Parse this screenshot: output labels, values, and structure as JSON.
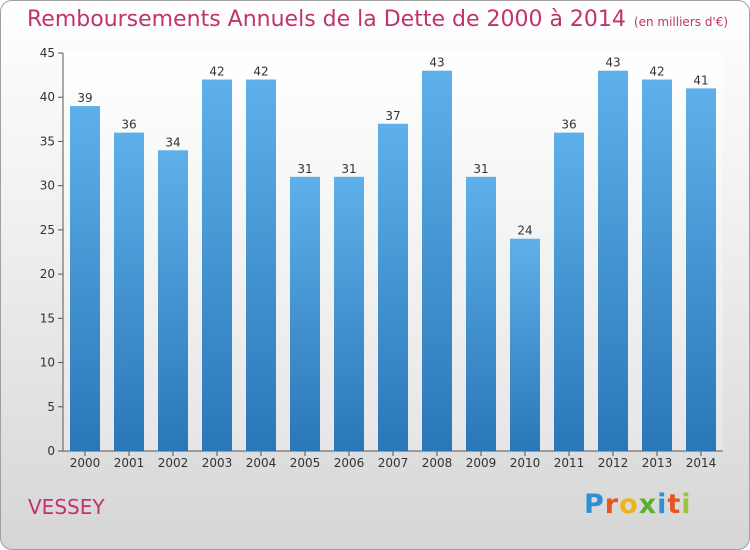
{
  "title": "Remboursements Annuels de la Dette de 2000 à 2014",
  "subtitle": "(en milliers d'€)",
  "commune": "VESSEY",
  "brand": {
    "letters": [
      "P",
      "r",
      "o",
      "x",
      "i",
      "t",
      "i"
    ],
    "colors": [
      "#2e8fd6",
      "#e8541f",
      "#f2b21a",
      "#5bb033",
      "#2e8fd6",
      "#e8541f",
      "#9bc43a"
    ]
  },
  "colors": {
    "accent": "#c0336e",
    "bar_top": "#5eb0ea",
    "bar_bottom": "#2a77b8"
  },
  "chart_data": {
    "type": "bar",
    "categories": [
      "2000",
      "2001",
      "2002",
      "2003",
      "2004",
      "2005",
      "2006",
      "2007",
      "2008",
      "2009",
      "2010",
      "2011",
      "2012",
      "2013",
      "2014"
    ],
    "values": [
      39,
      36,
      34,
      42,
      42,
      31,
      31,
      37,
      43,
      31,
      24,
      36,
      43,
      42,
      41
    ],
    "yticks": [
      "0",
      "5",
      "10",
      "15",
      "20",
      "25",
      "30",
      "35",
      "40",
      "45"
    ],
    "ylim": [
      0,
      45
    ],
    "grid": false,
    "xlabel": "",
    "ylabel": ""
  }
}
